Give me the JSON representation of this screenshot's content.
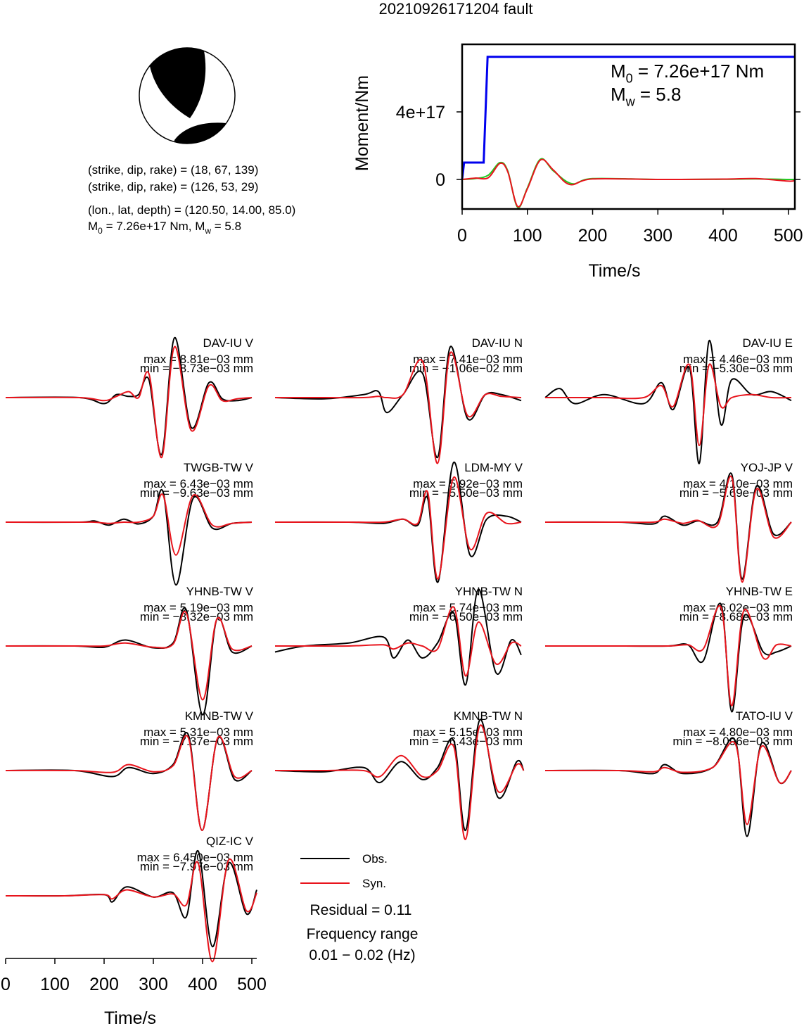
{
  "title": "20210926171204 fault",
  "mechanism": {
    "lines": [
      "(strike, dip, rake) = (18, 67, 139)",
      "(strike, dip, rake) = (126, 53, 29)",
      "(lon., lat, depth) = (120.50, 14.00, 85.0)"
    ],
    "moment_line": [
      "M",
      "0",
      " = 7.26e+17 Nm, M",
      "w",
      " = 5.8"
    ]
  },
  "chart_data": [
    {
      "type": "line",
      "xlabel": "Time/s",
      "ylabel": "Moment/Nm",
      "xlim": [
        0,
        510
      ],
      "xticks": [
        0,
        100,
        200,
        300,
        400,
        500
      ],
      "ylim": [
        -1.75e+17,
        8e+17
      ],
      "yticks": [
        0,
        {
          "value": 4e+17,
          "label": "4e+17"
        }
      ],
      "annotations": [
        [
          "M",
          "0",
          " = 7.26e+17 Nm"
        ],
        [
          "M",
          "w",
          " = 5.8"
        ]
      ],
      "series": [
        {
          "color": "#0000ee",
          "x": [
            0,
            3,
            33,
            39,
            510
          ],
          "values": [
            0,
            1e+17,
            1e+17,
            7.26e+17,
            7.26e+17
          ]
        },
        {
          "color": "#22cc22",
          "x": [
            0,
            20,
            40,
            58,
            70,
            85,
            100,
            120,
            140,
            168,
            200,
            300,
            400,
            450,
            500,
            510
          ],
          "values": [
            0,
            5000000000000000.0,
            2.5e+16,
            1e+17,
            5e+16,
            -1.65e+17,
            -5e+16,
            1.2e+17,
            5e+16,
            -2.5e+16,
            5000000000000000.0,
            0,
            1000000000000000.0,
            3000000000000000.0,
            0,
            0
          ]
        },
        {
          "color": "#e8141c",
          "x": [
            0,
            20,
            40,
            58,
            70,
            85,
            100,
            120,
            140,
            165,
            200,
            300,
            400,
            450,
            500,
            510
          ],
          "values": [
            0,
            8000000000000000.0,
            1e+16,
            9.5e+16,
            4.5e+16,
            -1.6e+17,
            -5.5e+16,
            1.15e+17,
            5.5e+16,
            -3e+16,
            3000000000000000.0,
            0,
            2000000000000000.0,
            5000000000000000.0,
            -1e+16,
            -5000000000000000.0
          ]
        }
      ]
    },
    {
      "type": "waveform",
      "xlabel": "Time/s",
      "xlim": [
        0,
        510
      ],
      "xticks": [
        0,
        100,
        200,
        300,
        400,
        500
      ],
      "legend": [
        {
          "name": "Obs.",
          "color": "#000000"
        },
        {
          "name": "Syn.",
          "color": "#e8141c"
        }
      ],
      "residual": "Residual = 0.11",
      "frequency": [
        "Frequency range",
        "0.01 − 0.02 (Hz)"
      ],
      "panels": [
        {
          "label": "DAV-IU V",
          "max": "max = 8.81e−03 mm",
          "min": "min = −8.73e−03 mm",
          "x": [
            0,
            150,
            200,
            225,
            250,
            270,
            291,
            317,
            343,
            377,
            413,
            440,
            470,
            500
          ],
          "obs": [
            0,
            0,
            -0.1,
            0.05,
            0.02,
            0.05,
            0.3,
            -0.95,
            1.0,
            -0.5,
            0.25,
            -0.02,
            -0.05,
            0
          ],
          "syn": [
            0,
            0,
            -0.05,
            0.02,
            0.1,
            0.0,
            0.4,
            -1.0,
            0.85,
            -0.55,
            0.2,
            -0.05,
            -0.02,
            0
          ]
        },
        {
          "label": "DAV-IU N",
          "max": "max = 7.41e−03 mm",
          "min": "min = −1.06e−02 mm",
          "x": [
            0,
            100,
            180,
            210,
            227,
            260,
            300,
            330,
            356,
            391,
            427,
            460,
            500
          ],
          "obs": [
            0,
            -0.02,
            0.05,
            0.1,
            -0.25,
            0.05,
            0.4,
            -1.0,
            0.85,
            -0.35,
            0.05,
            0.05,
            -0.05
          ],
          "syn": [
            0,
            0,
            0,
            0.02,
            0,
            0.05,
            0.6,
            -1.1,
            0.75,
            -0.3,
            0.05,
            0.02,
            0
          ]
        },
        {
          "label": "DAV-IU E",
          "max": "max = 4.46e−03 mm",
          "min": "min = −5.30e−03 mm",
          "x": [
            0,
            30,
            60,
            120,
            200,
            236,
            260,
            293,
            313,
            333,
            357,
            379,
            420,
            460,
            500
          ],
          "obs": [
            0,
            0.15,
            -0.1,
            0.05,
            -0.1,
            0.25,
            -0.2,
            0.5,
            -1.1,
            0.95,
            -0.45,
            0.3,
            0.05,
            0.1,
            -0.05
          ],
          "syn": [
            0,
            0,
            0,
            0,
            0,
            0.2,
            -0.15,
            0.55,
            -0.8,
            0.55,
            -0.15,
            0.0,
            0.05,
            0,
            0
          ]
        },
        {
          "label": "TWGB-TW V",
          "max": "max = 6.43e−03 mm",
          "min": "min = −9.63e−03 mm",
          "x": [
            0,
            150,
            180,
            210,
            240,
            270,
            300,
            320,
            346,
            381,
            420,
            460,
            500
          ],
          "obs": [
            0,
            0,
            0.02,
            -0.05,
            0.05,
            -0.03,
            0.1,
            0.5,
            -1.05,
            0.4,
            -0.1,
            -0.02,
            0
          ],
          "syn": [
            0,
            0,
            0,
            -0.02,
            0,
            0,
            0.1,
            0.45,
            -0.55,
            0.45,
            -0.05,
            -0.02,
            0
          ]
        },
        {
          "label": "LDM-MY V",
          "max": "max = 5.92e−03 mm",
          "min": "min = −5.50e−03 mm",
          "x": [
            0,
            150,
            220,
            260,
            290,
            310,
            331,
            363,
            396,
            430,
            470,
            500
          ],
          "obs": [
            0,
            0,
            -0.02,
            0.05,
            -0.05,
            0.4,
            -1.0,
            1.0,
            -0.55,
            0.05,
            0.1,
            0
          ],
          "syn": [
            0,
            0,
            0,
            0.05,
            -0.02,
            0.5,
            -0.95,
            0.75,
            -0.45,
            0.15,
            -0.02,
            0
          ]
        },
        {
          "label": "YOJ-JP V",
          "max": "max = 4.10e−03 mm",
          "min": "min = −5.69e−03 mm",
          "x": [
            0,
            150,
            220,
            243,
            280,
            310,
            350,
            379,
            400,
            429,
            464,
            500
          ],
          "obs": [
            0,
            0,
            -0.03,
            0.1,
            -0.05,
            0.02,
            0.0,
            0.8,
            -0.95,
            0.6,
            -0.2,
            0
          ],
          "syn": [
            0,
            0,
            0,
            0.05,
            -0.02,
            0.03,
            -0.05,
            0.75,
            -1.0,
            0.55,
            -0.25,
            0
          ]
        },
        {
          "label": "YHNB-TW V",
          "max": "max = 5.19e−03 mm",
          "min": "min = −8.32e−03 mm",
          "x": [
            0,
            140,
            200,
            243,
            300,
            340,
            367,
            400,
            429,
            460,
            500
          ],
          "obs": [
            0,
            0,
            -0.02,
            0.1,
            -0.03,
            0.05,
            0.6,
            -1.15,
            0.45,
            -0.1,
            0
          ],
          "syn": [
            0,
            0,
            0,
            0.05,
            -0.02,
            0.03,
            0.55,
            -0.9,
            0.45,
            -0.05,
            0
          ]
        },
        {
          "label": "YHNB-TW N",
          "max": "max = 5.74e−03 mm",
          "min": "min = −6.50e−03 mm",
          "x": [
            0,
            60,
            150,
            220,
            241,
            270,
            299,
            330,
            363,
            387,
            413,
            449,
            480,
            500
          ],
          "obs": [
            -0.1,
            0,
            0.05,
            0.15,
            -0.2,
            0.1,
            -0.2,
            0.05,
            0.55,
            -0.65,
            0.95,
            -0.45,
            0.1,
            -0.15
          ],
          "syn": [
            0,
            0,
            0,
            0.02,
            -0.05,
            0.05,
            0.0,
            -0.05,
            0.65,
            -0.5,
            0.4,
            -0.3,
            0.05,
            0
          ]
        },
        {
          "label": "YHNB-TW E",
          "max": "max = 6.02e−03 mm",
          "min": "min = −8.68e−03 mm",
          "x": [
            0,
            150,
            250,
            290,
            321,
            357,
            379,
            404,
            443,
            470,
            500
          ],
          "obs": [
            0,
            0,
            0,
            0.02,
            -0.25,
            0.7,
            -1.1,
            0.5,
            -0.1,
            -0.1,
            0
          ],
          "syn": [
            0,
            0,
            0,
            0.02,
            -0.05,
            0.65,
            -1.0,
            0.6,
            -0.2,
            0.02,
            0
          ]
        },
        {
          "label": "KMNB-TW V",
          "max": "max = 5.31e−03 mm",
          "min": "min = −7.37e−03 mm",
          "x": [
            0,
            140,
            217,
            250,
            300,
            340,
            371,
            399,
            431,
            465,
            500
          ],
          "obs": [
            0,
            0,
            -0.1,
            0.05,
            -0.05,
            0.1,
            0.6,
            -1.0,
            0.55,
            -0.15,
            0
          ],
          "syn": [
            0,
            0,
            -0.03,
            0.1,
            -0.02,
            0.08,
            0.55,
            -1.0,
            0.55,
            -0.1,
            0
          ]
        },
        {
          "label": "KMNB-TW N",
          "max": "max = 5.15e−03 mm",
          "min": "min = −6.43e−03 mm",
          "x": [
            0,
            100,
            180,
            213,
            256,
            299,
            330,
            363,
            387,
            416,
            453,
            491,
            505
          ],
          "obs": [
            0,
            -0.02,
            0.05,
            -0.2,
            0.15,
            -0.15,
            0.05,
            0.5,
            -1.0,
            0.85,
            -0.45,
            0.15,
            0
          ],
          "syn": [
            0,
            0,
            0,
            -0.1,
            0.25,
            -0.1,
            0.0,
            0.4,
            -1.15,
            0.75,
            -0.35,
            0.1,
            0
          ]
        },
        {
          "label": "TATO-IU V",
          "max": "max = 4.80e−03 mm",
          "min": "min = −8.096e−03 mm",
          "x": [
            0,
            150,
            220,
            243,
            280,
            340,
            386,
            410,
            439,
            476,
            500
          ],
          "obs": [
            0,
            0,
            -0.05,
            0.1,
            -0.05,
            0.05,
            0.5,
            -1.1,
            0.45,
            -0.2,
            0
          ],
          "syn": [
            0,
            0,
            -0.02,
            0.05,
            -0.03,
            0.05,
            0.45,
            -0.9,
            0.4,
            -0.2,
            0
          ]
        },
        {
          "label": "QIZ-IC V",
          "max": "max = 6.450e−03 mm",
          "min": "min = −7.97e−03 mm",
          "x": [
            0,
            120,
            200,
            217,
            246,
            300,
            340,
            367,
            391,
            420,
            453,
            489,
            510
          ],
          "obs": [
            0,
            0,
            0.02,
            -0.1,
            0.15,
            -0.02,
            0.05,
            -0.35,
            0.75,
            -0.85,
            0.55,
            -0.3,
            0.1
          ],
          "syn": [
            0,
            0,
            0.02,
            -0.05,
            0.1,
            -0.02,
            0.03,
            -0.15,
            0.55,
            -1.1,
            0.6,
            -0.25,
            0.05
          ]
        }
      ]
    }
  ]
}
